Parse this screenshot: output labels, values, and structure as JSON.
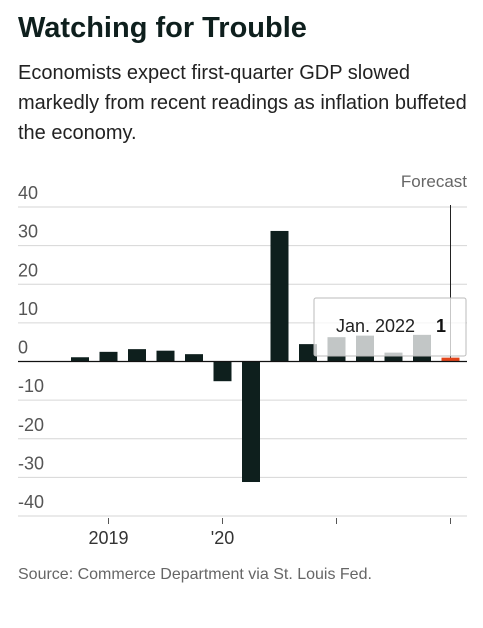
{
  "chart_data": {
    "type": "bar",
    "title": "Watching for Trouble",
    "subtitle": "Economists expect first-quarter GDP slowed markedly from recent readings as inflation buffeted the economy.",
    "source": "Source: Commerce Department via St. Louis Fed.",
    "annotation": "Forecast",
    "tooltip_label": "Jan. 2022",
    "categories": [
      null,
      "2019",
      null,
      null,
      null,
      "'20",
      null,
      null,
      null,
      null,
      null,
      null,
      null,
      null
    ],
    "values": [
      1.1,
      2.5,
      3.2,
      2.8,
      1.9,
      -5.1,
      -31.2,
      33.8,
      4.5,
      6.3,
      6.7,
      2.3,
      6.9,
      1
    ],
    "color": "#0e1f1d",
    "forecast_color": "#e2451b",
    "ylim": [
      -40,
      40
    ],
    "yticks": [
      -40,
      -30,
      -20,
      -10,
      0,
      10,
      20,
      30,
      40
    ],
    "grid": true
  }
}
